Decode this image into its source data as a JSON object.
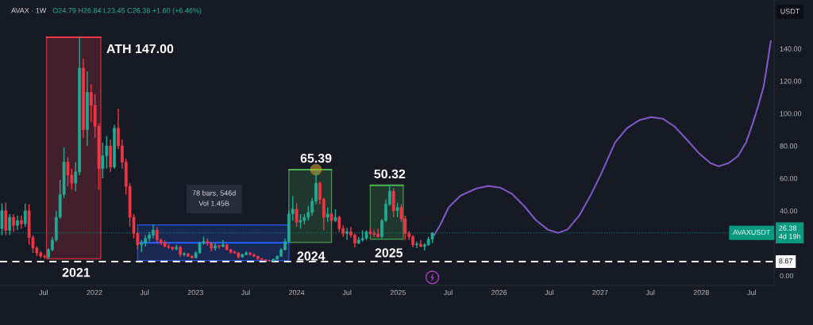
{
  "chart_data": {
    "type": "candlestick",
    "title": "AVAX · 1W",
    "subtitle": "O24.79 H26.84 L23.45 C26.38 +1.60 (+6.46%)",
    "ylabel": "USDT",
    "xlim": [
      "2021-01-25",
      "2028-09-20"
    ],
    "xticks": [
      {
        "value": "2021-07-01",
        "label": "Jul"
      },
      {
        "value": "2022-01-01",
        "label": "2022"
      },
      {
        "value": "2022-07-01",
        "label": "Jul"
      },
      {
        "value": "2023-01-01",
        "label": "2023"
      },
      {
        "value": "2023-07-01",
        "label": "Jul"
      },
      {
        "value": "2024-01-01",
        "label": "2024"
      },
      {
        "value": "2024-07-01",
        "label": "Jul"
      },
      {
        "value": "2025-01-01",
        "label": "2025"
      },
      {
        "value": "2025-07-01",
        "label": "Jul"
      },
      {
        "value": "2026-01-01",
        "label": "2026"
      },
      {
        "value": "2026-07-01",
        "label": "Jul"
      },
      {
        "value": "2027-01-01",
        "label": "2027"
      },
      {
        "value": "2027-07-01",
        "label": "Jul"
      },
      {
        "value": "2028-01-01",
        "label": "2028"
      },
      {
        "value": "2028-07-01",
        "label": "Jul"
      }
    ],
    "ylim": [
      -6,
      170
    ],
    "yticks": [
      {
        "value": 0,
        "label": "0.00"
      },
      {
        "value": 40,
        "label": "40.00"
      },
      {
        "value": 60,
        "label": "60.00"
      },
      {
        "value": 80,
        "label": "80.00"
      },
      {
        "value": 100,
        "label": "100.00"
      },
      {
        "value": 120,
        "label": "120.00"
      },
      {
        "value": 140,
        "label": "140.00"
      }
    ],
    "series": [
      {
        "type": "line",
        "x": [
          "2021-07-12",
          "2022-01-24"
        ],
        "values": [
          147,
          147
        ],
        "lower": [
          10.4,
          10.4
        ],
        "upper": [
          147,
          147
        ],
        "color": "#f23645"
      },
      {
        "type": "line",
        "x": [
          "2022-06-06",
          "2023-12-04"
        ],
        "values": [
          20.3,
          20.3
        ],
        "lower": [
          9.3,
          9.3
        ],
        "upper": [
          31.3,
          31.3
        ],
        "color": "#2962ff"
      },
      {
        "type": "line",
        "x": [
          "2023-12-04",
          "2024-05-06"
        ],
        "values": [
          65.39,
          65.39
        ],
        "lower": [
          20.5,
          20.5
        ],
        "upper": [
          65.39,
          65.39
        ],
        "color": "#4caf50"
      },
      {
        "type": "line",
        "x": [
          "2024-09-23",
          "2025-01-20"
        ],
        "values": [
          55.7,
          55.7
        ],
        "lower": [
          22.5,
          22.5
        ],
        "upper": [
          55.7,
          55.7
        ],
        "color": "#4caf50"
      },
      {
        "x": [
          "2021-02-01",
          "2021-02-15",
          "2021-03-01",
          "2021-03-15",
          "2021-03-29",
          "2021-04-12",
          "2021-04-26",
          "2021-05-10",
          "2021-05-24",
          "2021-06-07",
          "2021-06-21",
          "2021-07-05",
          "2021-07-19",
          "2021-08-02",
          "2021-08-16",
          "2021-08-30",
          "2021-09-13",
          "2021-09-27",
          "2021-10-11",
          "2021-10-25",
          "2021-11-08",
          "2021-11-22",
          "2021-12-06",
          "2021-12-20",
          "2022-01-03",
          "2022-01-17",
          "2022-01-31",
          "2022-02-14",
          "2022-02-28",
          "2022-03-14",
          "2022-03-28",
          "2022-04-11",
          "2022-04-25",
          "2022-05-09",
          "2022-05-23",
          "2022-06-06",
          "2022-06-20",
          "2022-07-04",
          "2022-07-18",
          "2022-08-01",
          "2022-08-15",
          "2022-08-29",
          "2022-09-12",
          "2022-09-26",
          "2022-10-10",
          "2022-10-24",
          "2022-11-07",
          "2022-11-21",
          "2022-12-05",
          "2022-12-19",
          "2023-01-02",
          "2023-01-16",
          "2023-01-30",
          "2023-02-13",
          "2023-02-27",
          "2023-03-13",
          "2023-03-27",
          "2023-04-10",
          "2023-04-24",
          "2023-05-08",
          "2023-05-22",
          "2023-06-05",
          "2023-06-19",
          "2023-07-03",
          "2023-07-17",
          "2023-07-31",
          "2023-08-14",
          "2023-08-28",
          "2023-09-11",
          "2023-09-25",
          "2023-10-09",
          "2023-10-23",
          "2023-11-06",
          "2023-11-20",
          "2023-12-04",
          "2023-12-18",
          "2024-01-01",
          "2024-01-15",
          "2024-01-29",
          "2024-02-12",
          "2024-02-26",
          "2024-03-11",
          "2024-03-25",
          "2024-04-08",
          "2024-04-22",
          "2024-05-06",
          "2024-05-20",
          "2024-06-03",
          "2024-06-17",
          "2024-07-01",
          "2024-07-15",
          "2024-07-29",
          "2024-08-12",
          "2024-08-26",
          "2024-09-09",
          "2024-09-23",
          "2024-10-07",
          "2024-10-21",
          "2024-11-04",
          "2024-11-18",
          "2024-12-02",
          "2024-12-16",
          "2024-12-30",
          "2025-01-13",
          "2025-01-27",
          "2025-02-10",
          "2025-02-24",
          "2025-03-10",
          "2025-03-24",
          "2025-04-07",
          "2025-04-21",
          "2025-05-05"
        ],
        "ohlc": [
          [
            29,
            44.5,
            25,
            40
          ],
          [
            40,
            45,
            25,
            28
          ],
          [
            28,
            38,
            25,
            36
          ],
          [
            36,
            38,
            27,
            31
          ],
          [
            31,
            37,
            28,
            34
          ],
          [
            34,
            37,
            29,
            32
          ],
          [
            32,
            44.5,
            30,
            40
          ],
          [
            40,
            44,
            19,
            23.5
          ],
          [
            23.5,
            25,
            14,
            17
          ],
          [
            17,
            18,
            12,
            14
          ],
          [
            14,
            15,
            10.8,
            12
          ],
          [
            12,
            13,
            10.4,
            11.5
          ],
          [
            11.5,
            17,
            10.4,
            16
          ],
          [
            16,
            24,
            15,
            22
          ],
          [
            22,
            40,
            21,
            36
          ],
          [
            36,
            59,
            35,
            50
          ],
          [
            50,
            79,
            48,
            70
          ],
          [
            70,
            73,
            55,
            62
          ],
          [
            62,
            66,
            53,
            57
          ],
          [
            57,
            70,
            52,
            64
          ],
          [
            64,
            147,
            62,
            128
          ],
          [
            128,
            134,
            85,
            90
          ],
          [
            90,
            126,
            80,
            113
          ],
          [
            113,
            118,
            95,
            105
          ],
          [
            105,
            112,
            85,
            92
          ],
          [
            92,
            94,
            53,
            66
          ],
          [
            66,
            82,
            60,
            74
          ],
          [
            74,
            86,
            66,
            80
          ],
          [
            80,
            84,
            64,
            67
          ],
          [
            67,
            93,
            66,
            91
          ],
          [
            91,
            103,
            78,
            80
          ],
          [
            80,
            84,
            66,
            70
          ],
          [
            70,
            72,
            50,
            55
          ],
          [
            55,
            57,
            30,
            36
          ],
          [
            36,
            38,
            23,
            26
          ],
          [
            26,
            27,
            16,
            19
          ],
          [
            19,
            22,
            14.5,
            20
          ],
          [
            20,
            25,
            18,
            23
          ],
          [
            23,
            27,
            21,
            25
          ],
          [
            25,
            31.5,
            23,
            28
          ],
          [
            28,
            30,
            20,
            22
          ],
          [
            22,
            23,
            19,
            20.5
          ],
          [
            20.5,
            22,
            17.5,
            18
          ],
          [
            18,
            19.5,
            16.5,
            17.5
          ],
          [
            17.5,
            18,
            15.5,
            16.5
          ],
          [
            16.5,
            19,
            15.5,
            17.5
          ],
          [
            17.5,
            18.5,
            11.5,
            13
          ],
          [
            13,
            14.5,
            12,
            13.5
          ],
          [
            13.5,
            14,
            11.5,
            12
          ],
          [
            12,
            12.5,
            10.5,
            11
          ],
          [
            11,
            15,
            10.8,
            14
          ],
          [
            14,
            21,
            13.5,
            20
          ],
          [
            20,
            24,
            19,
            21
          ],
          [
            21,
            23,
            18.5,
            20
          ],
          [
            20,
            20.5,
            15,
            17
          ],
          [
            17,
            20,
            15.5,
            18.5
          ],
          [
            18.5,
            19,
            16.5,
            18
          ],
          [
            18,
            22,
            17.5,
            19
          ],
          [
            19,
            19.5,
            15.5,
            16
          ],
          [
            16,
            16.5,
            13.5,
            14.5
          ],
          [
            14.5,
            15.5,
            13.5,
            14
          ],
          [
            14,
            14.5,
            10.5,
            11.5
          ],
          [
            11.5,
            13.5,
            11,
            13
          ],
          [
            13,
            15,
            12.5,
            14
          ],
          [
            14,
            14.5,
            12.5,
            13
          ],
          [
            13,
            13.5,
            11.5,
            12
          ],
          [
            12,
            12.2,
            9.8,
            10.5
          ],
          [
            10.5,
            10.8,
            9.5,
            9.8
          ],
          [
            9.8,
            10.2,
            8.8,
            9.4
          ],
          [
            9.4,
            9.8,
            8.67,
            9.2
          ],
          [
            9.2,
            10.5,
            8.7,
            10.2
          ],
          [
            10.2,
            12.5,
            9.8,
            12
          ],
          [
            12,
            17,
            11.5,
            16
          ],
          [
            16,
            23,
            15.5,
            21
          ],
          [
            21,
            40,
            20.5,
            38
          ],
          [
            38,
            49,
            34,
            41
          ],
          [
            41,
            45,
            30,
            33
          ],
          [
            33,
            38,
            29,
            34
          ],
          [
            34,
            38,
            31.5,
            36
          ],
          [
            36,
            43,
            34,
            39
          ],
          [
            39,
            48,
            37,
            46
          ],
          [
            46,
            65.39,
            44,
            57
          ],
          [
            57,
            58,
            44,
            47
          ],
          [
            47,
            48,
            28,
            36
          ],
          [
            36,
            42,
            33,
            38
          ],
          [
            38,
            39,
            32,
            34
          ],
          [
            34,
            41,
            33,
            36
          ],
          [
            36,
            37,
            27,
            29
          ],
          [
            29,
            31,
            24,
            26
          ],
          [
            26,
            29.5,
            22,
            27
          ],
          [
            27,
            30,
            23.5,
            25
          ],
          [
            25,
            26,
            17.5,
            20
          ],
          [
            20,
            24,
            19.5,
            22
          ],
          [
            22,
            28,
            21,
            23
          ],
          [
            23,
            28,
            22,
            27
          ],
          [
            27,
            29.5,
            25,
            26
          ],
          [
            26,
            28,
            24,
            25.5
          ],
          [
            25.5,
            29,
            23.5,
            24
          ],
          [
            24,
            35,
            23,
            34
          ],
          [
            34,
            47,
            33,
            44
          ],
          [
            44,
            55.7,
            43,
            52
          ],
          [
            52,
            54,
            36,
            40
          ],
          [
            40,
            45,
            36,
            42
          ],
          [
            42,
            44,
            33,
            35
          ],
          [
            35,
            37,
            22,
            26
          ],
          [
            26,
            27.5,
            22,
            24
          ],
          [
            24,
            25,
            17.5,
            19
          ],
          [
            19,
            21,
            17,
            19.5
          ],
          [
            19.5,
            22,
            17.5,
            18
          ],
          [
            18,
            20,
            15.5,
            19
          ],
          [
            19,
            24,
            18.5,
            22.5
          ],
          [
            22.5,
            26.84,
            20,
            26.38
          ]
        ],
        "colors": [
          "#22ab94",
          "#f23645",
          "#22ab94",
          "#f23645",
          "#22ab94",
          "#f23645",
          "#22ab94",
          "#f23645",
          "#f23645",
          "#f23645",
          "#f23645",
          "#f23645",
          "#22ab94",
          "#22ab94",
          "#22ab94",
          "#22ab94",
          "#22ab94",
          "#f23645",
          "#f23645",
          "#22ab94",
          "#22ab94",
          "#f23645",
          "#22ab94",
          "#f23645",
          "#f23645",
          "#f23645",
          "#22ab94",
          "#22ab94",
          "#f23645",
          "#22ab94",
          "#f23645",
          "#f23645",
          "#f23645",
          "#f23645",
          "#f23645",
          "#f23645",
          "#22ab94",
          "#22ab94",
          "#22ab94",
          "#22ab94",
          "#f23645",
          "#f23645",
          "#f23645",
          "#f23645",
          "#f23645",
          "#22ab94",
          "#f23645",
          "#22ab94",
          "#f23645",
          "#f23645",
          "#22ab94",
          "#22ab94",
          "#22ab94",
          "#f23645",
          "#f23645",
          "#22ab94",
          "#f23645",
          "#22ab94",
          "#f23645",
          "#f23645",
          "#f23645",
          "#f23645",
          "#22ab94",
          "#22ab94",
          "#f23645",
          "#f23645",
          "#f23645",
          "#f23645",
          "#f23645",
          "#f23645",
          "#22ab94",
          "#22ab94",
          "#22ab94",
          "#22ab94",
          "#22ab94",
          "#22ab94",
          "#f23645",
          "#22ab94",
          "#22ab94",
          "#22ab94",
          "#22ab94",
          "#22ab94",
          "#f23645",
          "#f23645",
          "#22ab94",
          "#f23645",
          "#22ab94",
          "#f23645",
          "#f23645",
          "#22ab94",
          "#f23645",
          "#f23645",
          "#22ab94",
          "#22ab94",
          "#22ab94",
          "#f23645",
          "#f23645",
          "#f23645",
          "#22ab94",
          "#22ab94",
          "#22ab94",
          "#f23645",
          "#22ab94",
          "#f23645",
          "#f23645",
          "#f23645",
          "#f23645",
          "#22ab94",
          "#f23645",
          "#22ab94",
          "#22ab94",
          "#22ab94"
        ]
      },
      {
        "type": "scatter",
        "x": [
          "2024-03-11"
        ],
        "values": [
          65.39
        ],
        "color": "#e0a526",
        "marker": "circle"
      },
      {
        "type": "line",
        "x": [
          "2025-05-12",
          "2025-06-04",
          "2025-07-03",
          "2025-08-15",
          "2025-10-11",
          "2025-11-23",
          "2026-01-05",
          "2026-02-17",
          "2026-04-01",
          "2026-05-14",
          "2026-06-26",
          "2026-08-02",
          "2026-09-05",
          "2026-10-18",
          "2026-11-30",
          "2027-01-04",
          "2027-02-24",
          "2027-04-08",
          "2027-05-21",
          "2027-07-03",
          "2027-08-15",
          "2027-09-27",
          "2027-11-09",
          "2027-12-22",
          "2028-02-03",
          "2028-03-03",
          "2028-04-09",
          "2028-05-13",
          "2028-06-11",
          "2028-07-04",
          "2028-07-24",
          "2028-08-13",
          "2028-08-27",
          "2028-09-08"
        ],
        "values": [
          25,
          31.8,
          42.1,
          49.4,
          53.8,
          55.3,
          54.3,
          50.4,
          43.0,
          34.2,
          28.4,
          26.4,
          28.4,
          37.2,
          50.4,
          62.6,
          82.2,
          91.0,
          95.8,
          97.8,
          96.8,
          91.9,
          84.1,
          75.8,
          69.4,
          67.5,
          69.4,
          73.8,
          82.2,
          93.4,
          104.2,
          116.4,
          131,
          144.7
        ],
        "color": "#7e57c2"
      }
    ],
    "ref_lines": [
      {
        "axis": "y",
        "value": 8.67,
        "label": "8.67",
        "color": "#ffffff",
        "line_style": "dashed"
      },
      {
        "axis": "y",
        "value": 26.38,
        "label": "26.38\n4d 19h",
        "color": "#089981",
        "line_style": "dotted"
      }
    ],
    "annotations": [
      {
        "text": "ATH 147.00",
        "x": "2022-01-24",
        "y": 147
      },
      {
        "text": "2021",
        "x": "2021-10-27",
        "y": 10.4
      },
      {
        "text": "78 bars, 546d\nVol 1.45B",
        "x": "2023-03-09",
        "y": 31.3
      },
      {
        "text": "65.39",
        "x": "2024-03-11",
        "y": 65.39
      },
      {
        "text": "2024",
        "x": "2024-02-22",
        "y": 20.5
      },
      {
        "text": "50.32",
        "x": "2024-12-02",
        "y": 55.7
      },
      {
        "text": "2025",
        "x": "2024-11-29",
        "y": 22.5
      },
      {
        "text": "AVAXUSDT",
        "x": "2028-07-01",
        "y": 26.38
      }
    ]
  }
}
